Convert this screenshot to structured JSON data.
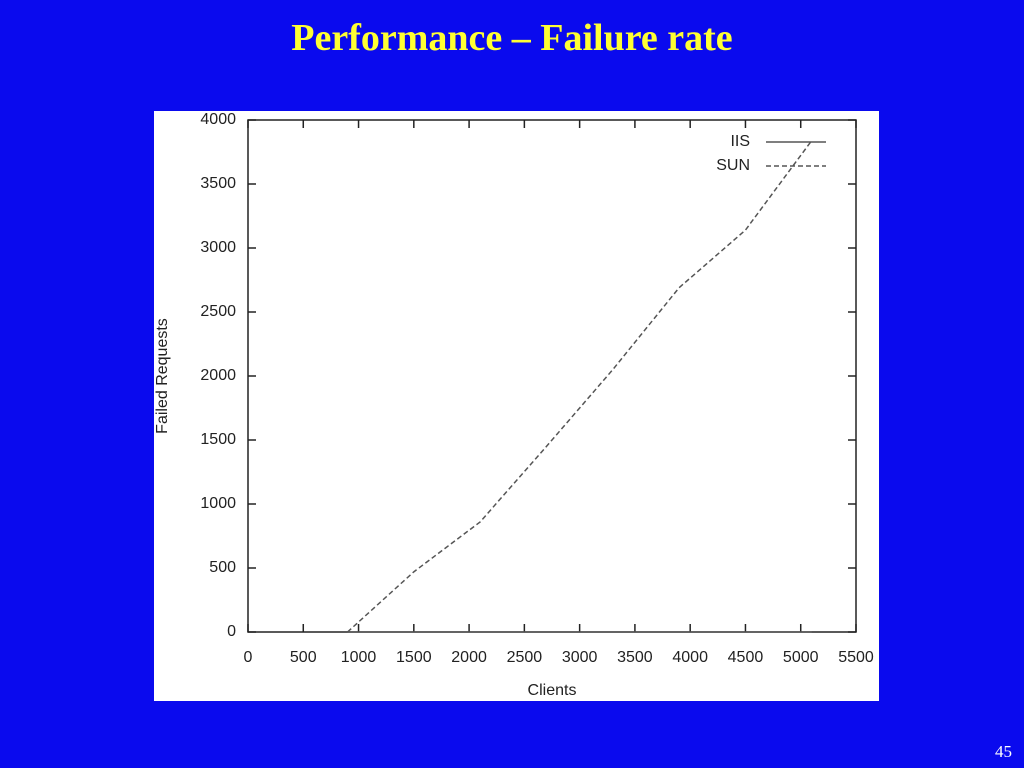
{
  "slide": {
    "title": "Performance – Failure rate",
    "page_number": "45"
  },
  "chart_data": {
    "type": "line",
    "x_label": "Clients",
    "y_label": "Failed Requests",
    "x": [
      900,
      1500,
      2100,
      2700,
      3300,
      3900,
      4500,
      5100
    ],
    "series": [
      {
        "name": "IIS",
        "color": "#555555",
        "dash": false,
        "values": [
          0,
          0,
          0,
          0,
          0,
          0,
          0,
          0
        ]
      },
      {
        "name": "SUN",
        "color": "#555555",
        "dash": true,
        "values": [
          0,
          470,
          860,
          1450,
          2050,
          2690,
          3140,
          3840
        ]
      }
    ],
    "xlim": [
      0,
      5500
    ],
    "xticks": [
      0,
      500,
      1000,
      1500,
      2000,
      2500,
      3000,
      3500,
      4000,
      4500,
      5000,
      5500
    ],
    "ylim": [
      0,
      4000
    ],
    "yticks": [
      0,
      500,
      1000,
      1500,
      2000,
      2500,
      3000,
      3500,
      4000
    ],
    "legend": "top-right",
    "grid": false
  }
}
